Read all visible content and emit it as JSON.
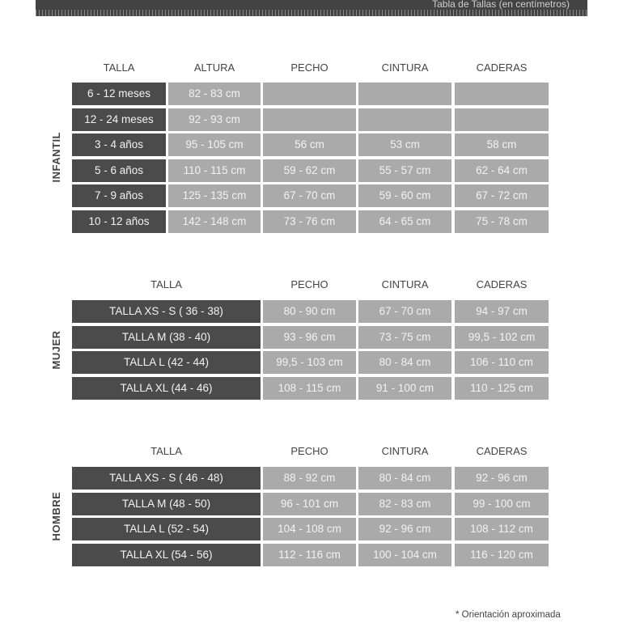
{
  "header": {
    "title": "Tabla de Tallas (en centímetros)"
  },
  "infantil": {
    "label": "INFANTIL",
    "columns": [
      "TALLA",
      "ALTURA",
      "PECHO",
      "CINTURA",
      "CADERAS"
    ],
    "rows": [
      [
        "6 - 12 meses",
        "82 - 83 cm",
        "",
        "",
        ""
      ],
      [
        "12 - 24 meses",
        "92 - 93 cm",
        "",
        "",
        ""
      ],
      [
        "3 - 4 años",
        "95 - 105 cm",
        "56 cm",
        "53 cm",
        "58 cm"
      ],
      [
        "5 - 6 años",
        "110 - 115 cm",
        "59 - 62 cm",
        "55 - 57 cm",
        "62 - 64 cm"
      ],
      [
        "7 - 9 años",
        "125 - 135 cm",
        "67 - 70 cm",
        "59 - 60 cm",
        "67 - 72 cm"
      ],
      [
        "10 - 12 años",
        "142 - 148 cm",
        "73 - 76 cm",
        "64 - 65 cm",
        "75 - 78 cm"
      ]
    ]
  },
  "mujer": {
    "label": "MUJER",
    "columns": [
      "TALLA",
      "PECHO",
      "CINTURA",
      "CADERAS"
    ],
    "rows": [
      [
        "TALLA XS - S ( 36 - 38)",
        "80 - 90 cm",
        "67 - 70 cm",
        "94 - 97 cm"
      ],
      [
        "TALLA M (38 - 40)",
        "93 - 96 cm",
        "73 - 75 cm",
        "99,5 - 102 cm"
      ],
      [
        "TALLA L (42 - 44)",
        "99,5 - 103 cm",
        "80 - 84 cm",
        "106 - 110 cm"
      ],
      [
        "TALLA XL (44 - 46)",
        "108 - 115 cm",
        "91 - 100 cm",
        "110 - 125 cm"
      ]
    ]
  },
  "hombre": {
    "label": "HOMBRE",
    "columns": [
      "TALLA",
      "PECHO",
      "CINTURA",
      "CADERAS"
    ],
    "rows": [
      [
        "TALLA XS - S ( 46 - 48)",
        "88 - 92 cm",
        "80 - 84 cm",
        "92 - 96 cm"
      ],
      [
        "TALLA M (48 - 50)",
        "96 - 101 cm",
        "82 - 83 cm",
        "99 - 100 cm"
      ],
      [
        "TALLA L (52 - 54)",
        "104 - 108 cm",
        "92 - 96 cm",
        "108 - 112 cm"
      ],
      [
        "TALLA XL (54 - 56)",
        "112 - 116 cm",
        "100 - 104 cm",
        "116 - 120 cm"
      ]
    ]
  },
  "footnote": "* Orientación aproximada"
}
